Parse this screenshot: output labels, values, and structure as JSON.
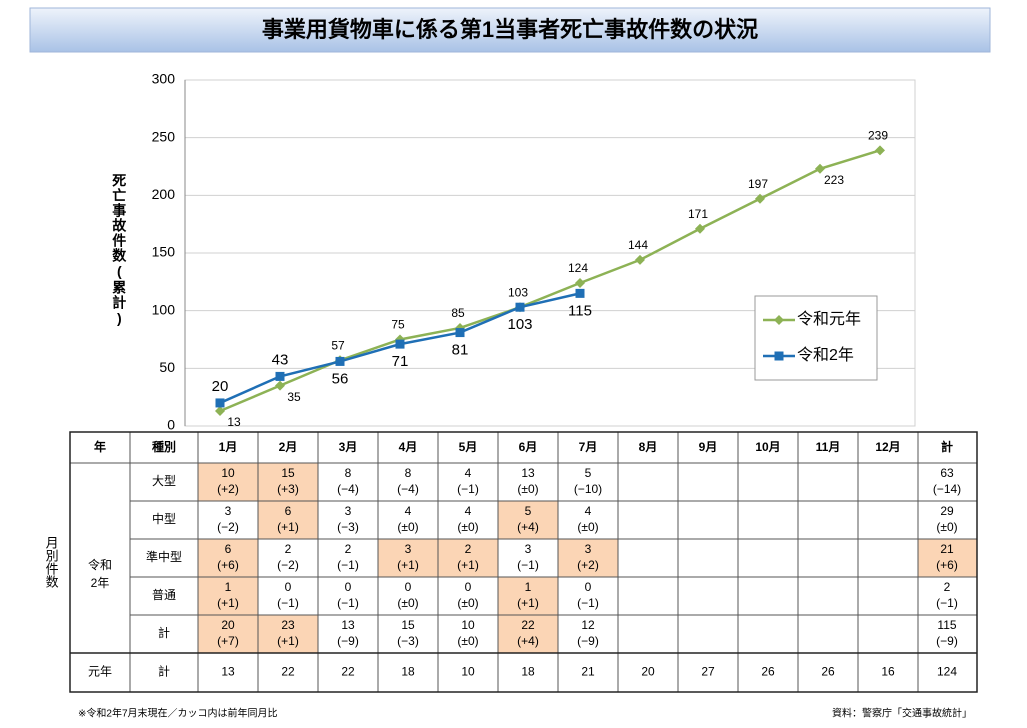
{
  "title": "事業用貨物車に係る第1当事者死亡事故件数の状況",
  "chart_data": {
    "type": "line",
    "y_label": "死亡事故件数(累計)",
    "categories": [
      "1月",
      "2月",
      "3月",
      "4月",
      "5月",
      "6月",
      "7月",
      "8月",
      "9月",
      "10月",
      "11月",
      "12月"
    ],
    "ylim": [
      0,
      300
    ],
    "yticks": [
      0,
      50,
      100,
      150,
      200,
      250,
      300
    ],
    "grid": true,
    "legend": "right",
    "series": [
      {
        "name": "令和元年",
        "color": "#8db255",
        "values": [
          13,
          35,
          57,
          75,
          85,
          103,
          124,
          144,
          171,
          197,
          223,
          239
        ]
      },
      {
        "name": "令和2年",
        "color": "#1f6fb5",
        "values": [
          20,
          43,
          56,
          71,
          81,
          103,
          115,
          null,
          null,
          null,
          null,
          null
        ]
      }
    ]
  },
  "table": {
    "headers": [
      "年",
      "種別",
      "計"
    ],
    "side_label": "月別件数",
    "group_label": "令和2年",
    "rows": [
      {
        "kind": "大型",
        "counts": [
          10,
          15,
          8,
          8,
          4,
          13,
          5
        ],
        "diffs": [
          "(+2)",
          "(+3)",
          "(−4)",
          "(−4)",
          "(−1)",
          "(±0)",
          "(−10)"
        ],
        "total": 63,
        "total_diff": "(−14)",
        "highlight": [
          0,
          1
        ],
        "total_highlight": false
      },
      {
        "kind": "中型",
        "counts": [
          3,
          6,
          3,
          4,
          4,
          5,
          4
        ],
        "diffs": [
          "(−2)",
          "(+1)",
          "(−3)",
          "(±0)",
          "(±0)",
          "(+4)",
          "(±0)"
        ],
        "total": 29,
        "total_diff": "(±0)",
        "highlight": [
          1,
          5
        ],
        "total_highlight": false
      },
      {
        "kind": "準中型",
        "counts": [
          6,
          2,
          2,
          3,
          2,
          3,
          3
        ],
        "diffs": [
          "(+6)",
          "(−2)",
          "(−1)",
          "(+1)",
          "(+1)",
          "(−1)",
          "(+2)"
        ],
        "total": 21,
        "total_diff": "(+6)",
        "highlight": [
          0,
          3,
          4,
          6
        ],
        "total_highlight": true
      },
      {
        "kind": "普通",
        "counts": [
          1,
          0,
          0,
          0,
          0,
          1,
          0
        ],
        "diffs": [
          "(+1)",
          "(−1)",
          "(−1)",
          "(±0)",
          "(±0)",
          "(+1)",
          "(−1)"
        ],
        "total": 2,
        "total_diff": "(−1)",
        "highlight": [
          0,
          5
        ],
        "total_highlight": false
      },
      {
        "kind": "計",
        "counts": [
          20,
          23,
          13,
          15,
          10,
          22,
          12
        ],
        "diffs": [
          "(+7)",
          "(+1)",
          "(−9)",
          "(−3)",
          "(±0)",
          "(+4)",
          "(−9)"
        ],
        "total": 115,
        "total_diff": "(−9)",
        "highlight": [
          0,
          1,
          5
        ],
        "total_highlight": false
      }
    ],
    "prev": {
      "label": "元年",
      "kind": "計",
      "counts": [
        13,
        22,
        22,
        18,
        10,
        18,
        21,
        20,
        27,
        26,
        26,
        16
      ],
      "total": 124,
      "muted": [
        7,
        8,
        9,
        10,
        11
      ]
    }
  },
  "footnote": "※令和2年7月末現在／カッコ内は前年同月比",
  "source": "資料：警察庁「交通事故統計」"
}
